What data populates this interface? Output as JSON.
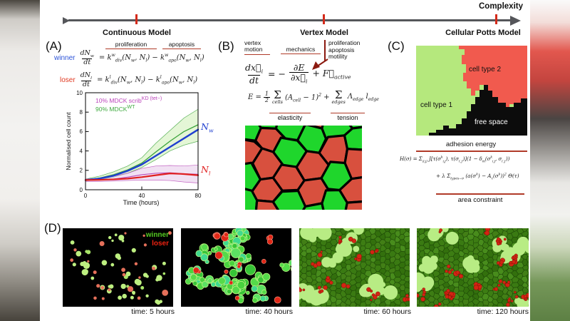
{
  "colors": {
    "annotation_red": "#b03a28",
    "axis_tick_red": "#d42a1a",
    "axis_gray": "#55565a",
    "winner_blue": "#2a52d8",
    "loser_red": "#e03a22",
    "legend_magenta": "#bb44bb",
    "legend_green": "#3faa3f",
    "nw_blue": "#1f3fd0",
    "nl_red": "#e02020",
    "sim_winner_green": "#55cc22",
    "sim_loser_red": "#ee2211"
  },
  "complexity_axis": {
    "title": "Complexity",
    "ticks": [
      {
        "label": "Continuous Model"
      },
      {
        "label": "Vertex Model"
      },
      {
        "label": "Cellular Potts Model"
      }
    ]
  },
  "panel_a": {
    "label": "(A)",
    "ann_proliferation": "proliferation",
    "ann_apoptosis": "apoptosis",
    "winner": "winner",
    "loser": "loser",
    "eq_winner": {
      "num": "dN_{w}",
      "den": "dt",
      "rhs": "= k^{w}_{div}(N_{w}, N_{l}) − k^{w}_{apo}(N_{w}, N_{l})"
    },
    "eq_loser": {
      "num": "dN_{l}",
      "den": "dt",
      "rhs": "= k^{l}_{div}(N_{w}, N_{l}) − k^{l}_{apo}(N_{w}, N_{l})"
    },
    "plot": {
      "legend": [
        {
          "label": "10% MDCK scrib^{KD (tet−)}",
          "color": "#bb44bb"
        },
        {
          "label": "90% MDCK^{WT}",
          "color": "#3faa3f"
        }
      ],
      "ylabel": "Normalised cell count",
      "xlabel": "Time (hours)",
      "nw": "N_{w}",
      "nl": "N_{l}"
    }
  },
  "chart_data": {
    "type": "line",
    "title": "",
    "xlabel": "Time (hours)",
    "ylabel": "Normalised cell count",
    "xlim": [
      0,
      80
    ],
    "ylim": [
      0,
      10
    ],
    "xticks": [
      0,
      40,
      80
    ],
    "yticks": [
      0,
      2,
      4,
      6,
      8,
      10
    ],
    "grid": false,
    "legend_position": "upper left",
    "x": [
      0,
      10,
      20,
      30,
      40,
      50,
      60,
      70,
      80
    ],
    "series": [
      {
        "name": "90% MDCK WT (experiment mean ± sd)",
        "color": "#3aa23a",
        "lw": 1.3,
        "values": [
          1.0,
          1.2,
          1.55,
          2.05,
          2.75,
          3.9,
          5.0,
          6.0,
          6.7
        ],
        "band_low": [
          0.9,
          1.05,
          1.3,
          1.7,
          2.3,
          3.1,
          4.0,
          4.6,
          5.0
        ],
        "band_high": [
          1.1,
          1.4,
          1.85,
          2.45,
          3.3,
          4.8,
          6.1,
          7.4,
          8.3
        ],
        "band_color": "#cdeeb4"
      },
      {
        "name": "10% MDCK scribKD (experiment mean ± sd)",
        "color": "#b84ab8",
        "lw": 1.1,
        "values": [
          0.95,
          1.0,
          1.1,
          1.3,
          1.55,
          1.7,
          1.75,
          1.65,
          1.6
        ],
        "band_low": [
          0.85,
          0.85,
          0.9,
          0.95,
          1.0,
          1.0,
          0.95,
          0.8,
          0.7
        ],
        "band_high": [
          1.1,
          1.2,
          1.4,
          1.7,
          2.2,
          2.45,
          2.5,
          2.45,
          2.55
        ],
        "band_color": "#e6c8ea"
      },
      {
        "name": "N_w winner (continuous model)",
        "color": "#1f3fd0",
        "lw": 2.4,
        "values": [
          1.0,
          1.15,
          1.45,
          1.95,
          2.6,
          3.5,
          4.4,
          5.3,
          6.2
        ]
      },
      {
        "name": "N_l loser (continuous model)",
        "color": "#e02020",
        "lw": 2.2,
        "values": [
          1.0,
          1.02,
          1.07,
          1.15,
          1.3,
          1.5,
          1.68,
          1.62,
          1.5
        ]
      }
    ],
    "right_labels": [
      {
        "text": "N_{w}",
        "color": "#1f3fd0"
      },
      {
        "text": "N_{l}",
        "color": "#e02020"
      }
    ]
  },
  "panel_b": {
    "label": "(B)",
    "ann_vertex_motion": "vertex motion",
    "ann_mechanics": "mechanics",
    "ann_active": [
      "proliferation",
      "apoptosis",
      "motility"
    ],
    "eq1": {
      "num1": "dx⃗_{i}",
      "den1": "dt",
      "mid": "= −",
      "num2": "∂E",
      "den2": "∂x⃗_{i}",
      "plus": "+ F⃗_{active}"
    },
    "eq2": {
      "lead": "E =",
      "fnum": "1",
      "fden": "2",
      "sum": "Σ",
      "sum1_sub": "cells",
      "term1": "(A_{cell} − 1)^{2}",
      "plus": "+",
      "sum2_sub": "edges",
      "term2": "Λ_{edge} l_{edge}"
    },
    "ann_elasticity": "elasticity",
    "ann_tension": "tension"
  },
  "panel_c": {
    "label": "(C)",
    "region_labels": {
      "type1": "cell type 1",
      "type2": "cell type 2",
      "free": "free space"
    },
    "region_colors": {
      "type1": "#b5e87d",
      "type2": "#f15a4e",
      "free": "#0c0c0c"
    },
    "ann_adhesion": "adhesion energy",
    "eq_line1": "H(σ) = Σ_{⟨i,j⟩} J[τ(σ^{k}_{i,j}), τ(σ_{i′,j′})](1 − δ_{m}(σ^{k}_{i,j}, σ_{i′,j′}))",
    "eq_line2": "+ λ Σ_{types−σ} (a(σ^{k}) − A_{τ}(σ^{k}))^{2} Θ(τ)",
    "ann_area": "area constraint"
  },
  "panel_d": {
    "label": "(D)",
    "legend": {
      "winner": "winner",
      "loser": "loser"
    },
    "tiles": [
      {
        "caption": "time: 5 hours"
      },
      {
        "caption": "time: 40 hours"
      },
      {
        "caption": "time: 60 hours"
      },
      {
        "caption": "time: 120 hours"
      }
    ]
  }
}
